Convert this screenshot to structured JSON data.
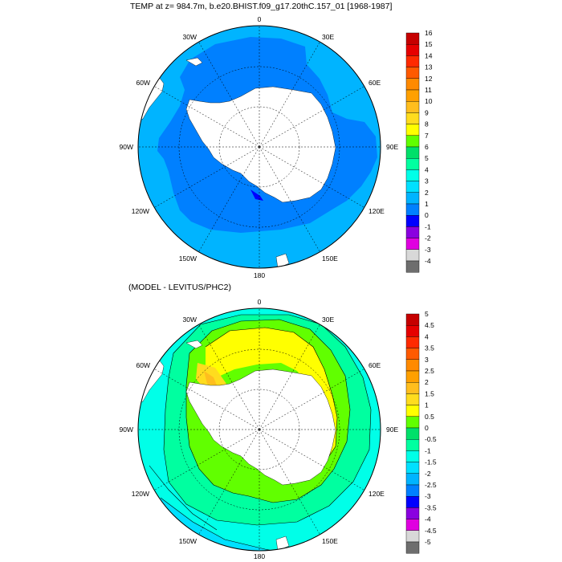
{
  "panels": [
    {
      "title": "TEMP at z= 984.7m, b.e20.BHIST.f09_g17.20thC.157_01 [1968-1987]",
      "longitude_labels": [
        "0",
        "30E",
        "60E",
        "90E",
        "120E",
        "150E",
        "180",
        "150W",
        "120W",
        "90W",
        "60W",
        "30W"
      ],
      "colorbar": {
        "labels": [
          "16",
          "15",
          "14",
          "13",
          "12",
          "11",
          "10",
          "9",
          "8",
          "7",
          "6",
          "5",
          "4",
          "3",
          "2",
          "1",
          "0",
          "-1",
          "-2",
          "-3",
          "-4"
        ],
        "colors": [
          "#c60000",
          "#e60000",
          "#ff2a00",
          "#ff5a00",
          "#ff8a00",
          "#ffa000",
          "#ffbe1e",
          "#ffdc1e",
          "#ffff00",
          "#61ff00",
          "#00e06a",
          "#00ffa0",
          "#00ffe8",
          "#00e0ff",
          "#00b4ff",
          "#0080ff",
          "#0000ff",
          "#8a00e0",
          "#e000e0",
          "#d8d8d8",
          "#6e6e6e"
        ]
      }
    },
    {
      "title": "(MODEL - LEVITUS/PHC2)",
      "longitude_labels": [
        "0",
        "30E",
        "60E",
        "90E",
        "120E",
        "150E",
        "180",
        "150W",
        "120W",
        "90W",
        "60W",
        "30W"
      ],
      "colorbar": {
        "labels": [
          "5",
          "4.5",
          "4",
          "3.5",
          "3",
          "2.5",
          "2",
          "1.5",
          "1",
          "0.5",
          "0",
          "-0.5",
          "-1",
          "-1.5",
          "-2",
          "-2.5",
          "-3",
          "-3.5",
          "-4",
          "-4.5",
          "-5"
        ],
        "colors": [
          "#c60000",
          "#e60000",
          "#ff2a00",
          "#ff5a00",
          "#ff8a00",
          "#ffa000",
          "#ffbe1e",
          "#ffdc1e",
          "#ffff00",
          "#61ff00",
          "#00e06a",
          "#00ffa0",
          "#00ffe8",
          "#00e0ff",
          "#00b4ff",
          "#0080ff",
          "#0000ff",
          "#8a00e0",
          "#e000e0",
          "#d8d8d8",
          "#6e6e6e"
        ]
      }
    }
  ]
}
